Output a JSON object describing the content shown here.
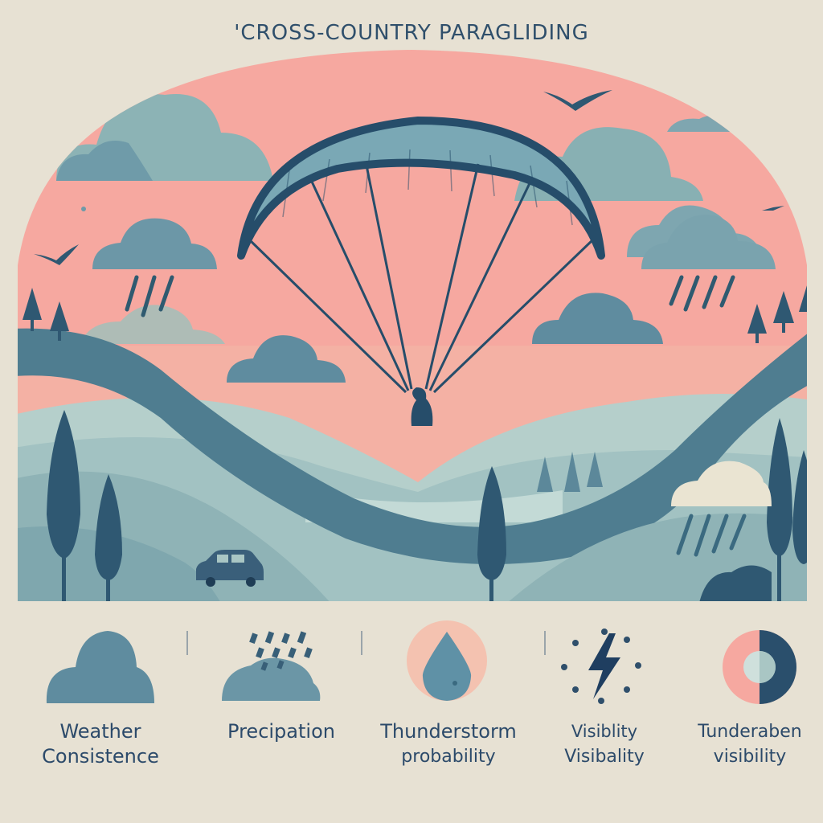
{
  "title": "'CROSS-COUNTRY PARAGLIDING",
  "colors": {
    "background": "#e7e1d3",
    "sky": "#f6a8a0",
    "cloud": "#6e9aa8",
    "hill_light": "#a9c6c4",
    "hill_dark": "#4e7c8f",
    "navy": "#264d6a"
  },
  "icons": [
    {
      "name": "cloud-icon",
      "line1": "Weather",
      "line2": "Consistence"
    },
    {
      "name": "rain-cloud-icon",
      "line1": "Precipation",
      "line2": ""
    },
    {
      "name": "water-drop-icon",
      "line1": "Thunderstorm",
      "line2": "probability"
    },
    {
      "name": "lightning-icon",
      "line1": "Visiblity",
      "line2": "Visibality"
    },
    {
      "name": "half-circle-icon",
      "line1": "Tunderaben",
      "line2": "visibility"
    }
  ]
}
